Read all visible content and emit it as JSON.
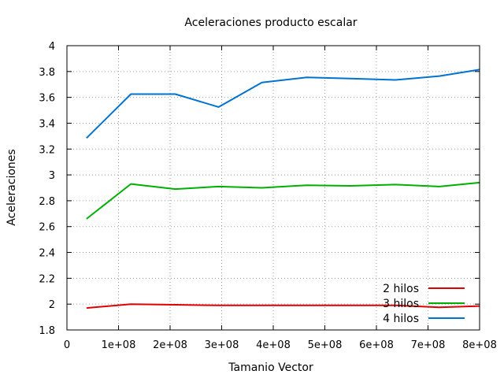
{
  "chart_data": {
    "type": "line",
    "title": "Aceleraciones producto escalar",
    "xlabel": "Tamanio Vector",
    "ylabel": "Aceleraciones",
    "xlim": [
      0,
      800000000
    ],
    "ylim": [
      1.8,
      4.0
    ],
    "x_ticks": [
      0,
      100000000,
      200000000,
      300000000,
      400000000,
      500000000,
      600000000,
      700000000,
      800000000
    ],
    "x_tick_labels": [
      "0",
      "1e+08",
      "2e+08",
      "3e+08",
      "4e+08",
      "5e+08",
      "6e+08",
      "7e+08",
      "8e+08"
    ],
    "y_ticks": [
      1.8,
      2.0,
      2.2,
      2.4,
      2.6,
      2.8,
      3.0,
      3.2,
      3.4,
      3.6,
      3.8,
      4.0
    ],
    "y_tick_labels": [
      "1.8",
      "2",
      "2.2",
      "2.4",
      "2.6",
      "2.8",
      "3",
      "3.2",
      "3.4",
      "3.6",
      "3.8",
      "4"
    ],
    "grid": true,
    "legend_position": "bottom-right",
    "x": [
      38000000,
      124000000,
      210000000,
      294000000,
      378000000,
      465000000,
      550000000,
      637000000,
      722000000,
      800000000
    ],
    "series": [
      {
        "name": "2 hilos",
        "color": "#e00000",
        "values": [
          1.97,
          2.0,
          1.995,
          1.99,
          1.99,
          1.99,
          1.99,
          1.99,
          1.975,
          1.985
        ]
      },
      {
        "name": "3 hilos",
        "color": "#00b000",
        "values": [
          2.66,
          2.93,
          2.89,
          2.91,
          2.9,
          2.92,
          2.915,
          2.925,
          2.91,
          2.94
        ]
      },
      {
        "name": "4 hilos",
        "color": "#0072d0",
        "values": [
          3.285,
          3.625,
          3.625,
          3.525,
          3.715,
          3.755,
          3.745,
          3.735,
          3.765,
          3.815
        ]
      }
    ]
  }
}
